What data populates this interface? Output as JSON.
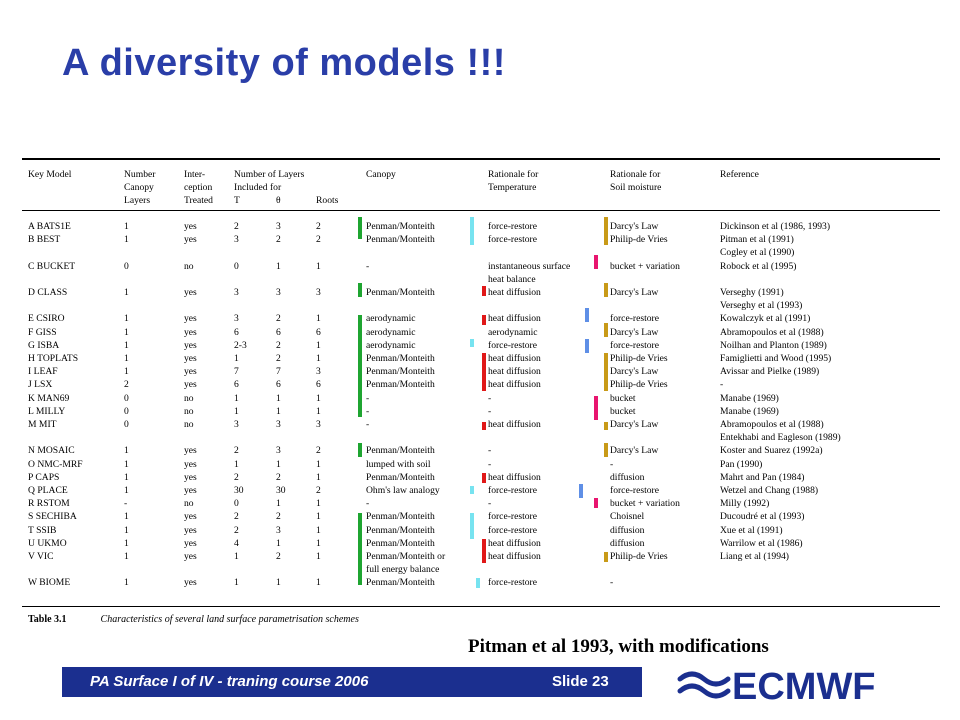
{
  "title": "A diversity of models !!!",
  "source_note": "Pitman et al 1993, with modifications",
  "footer": {
    "course": "PA Surface I of IV - traning course 2006",
    "slide": "Slide 23",
    "logo_text": "ECMWF"
  },
  "colors": {
    "title": "#2a3ea8",
    "footer_band": "#1b2f8f",
    "green": "#1fa531",
    "cyan": "#77e3f0",
    "gold": "#c89a18",
    "magenta": "#e8156f",
    "red": "#e01818",
    "blue": "#5f8fe6"
  },
  "table": {
    "headers": {
      "model": [
        "Key Model"
      ],
      "layers": [
        "Number",
        "Canopy",
        "Layers"
      ],
      "intercept": [
        "Inter-",
        "ception",
        "Treated"
      ],
      "nlayers": [
        "Number of Layers",
        "Included for"
      ],
      "T": "T",
      "theta": "θ",
      "roots": "Roots",
      "canopy": [
        "Canopy"
      ],
      "temp": [
        "Rationale for",
        "Temperature"
      ],
      "soil": [
        "Rationale for",
        "Soil moisture"
      ],
      "ref": [
        "Reference"
      ]
    },
    "rows": [
      {
        "model": "A BATS1E",
        "layers": "1",
        "intercept": "yes",
        "T": "2",
        "theta": "3",
        "roots": "2",
        "canopy": "Penman/Monteith",
        "temp": "force-restore",
        "soil": "Darcy's Law",
        "ref": "Dickinson et al (1986, 1993)"
      },
      {
        "model": "B BEST",
        "layers": "1",
        "intercept": "yes",
        "T": "3",
        "theta": "2",
        "roots": "2",
        "canopy": "Penman/Monteith",
        "temp": "force-restore",
        "soil": "Philip-de Vries",
        "ref": "Pitman et al (1991)"
      },
      {
        "model": "",
        "layers": "",
        "intercept": "",
        "T": "",
        "theta": "",
        "roots": "",
        "canopy": "",
        "temp": "",
        "soil": "",
        "ref": "Cogley et al (1990)"
      },
      {
        "model": "C BUCKET",
        "layers": "0",
        "intercept": "no",
        "T": "0",
        "theta": "1",
        "roots": "1",
        "canopy": "-",
        "temp": "instantaneous surface",
        "soil": "bucket + variation",
        "ref": "Robock et al (1995)"
      },
      {
        "model": "",
        "layers": "",
        "intercept": "",
        "T": "",
        "theta": "",
        "roots": "",
        "canopy": "",
        "temp": "heat balance",
        "soil": "",
        "ref": ""
      },
      {
        "model": "D CLASS",
        "layers": "1",
        "intercept": "yes",
        "T": "3",
        "theta": "3",
        "roots": "3",
        "canopy": "Penman/Monteith",
        "temp": "heat diffusion",
        "soil": "Darcy's Law",
        "ref": "Verseghy (1991)"
      },
      {
        "model": "",
        "layers": "",
        "intercept": "",
        "T": "",
        "theta": "",
        "roots": "",
        "canopy": "",
        "temp": "",
        "soil": "",
        "ref": "Verseghy et al (1993)"
      },
      {
        "model": "E CSIRO",
        "layers": "1",
        "intercept": "yes",
        "T": "3",
        "theta": "2",
        "roots": "1",
        "canopy": "aerodynamic",
        "temp": "heat diffusion",
        "soil": "force-restore",
        "ref": "Kowalczyk et al (1991)"
      },
      {
        "model": "F GISS",
        "layers": "1",
        "intercept": "yes",
        "T": "6",
        "theta": "6",
        "roots": "6",
        "canopy": "aerodynamic",
        "temp": "aerodynamic",
        "soil": "Darcy's Law",
        "ref": "Abramopoulos et al (1988)"
      },
      {
        "model": "G ISBA",
        "layers": "1",
        "intercept": "yes",
        "T": "2-3",
        "theta": "2",
        "roots": "1",
        "canopy": "aerodynamic",
        "temp": "force-restore",
        "soil": "force-restore",
        "ref": "Noilhan and Planton (1989)"
      },
      {
        "model": "H TOPLATS",
        "layers": "1",
        "intercept": "yes",
        "T": "1",
        "theta": "2",
        "roots": "1",
        "canopy": "Penman/Monteith",
        "temp": "heat diffusion",
        "soil": "Philip-de Vries",
        "ref": "Famiglietti and Wood (1995)"
      },
      {
        "model": "I LEAF",
        "layers": "1",
        "intercept": "yes",
        "T": "7",
        "theta": "7",
        "roots": "3",
        "canopy": "Penman/Monteith",
        "temp": "heat diffusion",
        "soil": "Darcy's Law",
        "ref": "Avissar and Pielke (1989)"
      },
      {
        "model": "J LSX",
        "layers": "2",
        "intercept": "yes",
        "T": "6",
        "theta": "6",
        "roots": "6",
        "canopy": "Penman/Monteith",
        "temp": "heat diffusion",
        "soil": "Philip-de Vries",
        "ref": "-"
      },
      {
        "model": "K MAN69",
        "layers": "0",
        "intercept": "no",
        "T": "1",
        "theta": "1",
        "roots": "1",
        "canopy": "-",
        "temp": "-",
        "soil": "bucket",
        "ref": "Manabe (1969)"
      },
      {
        "model": "L MILLY",
        "layers": "0",
        "intercept": "no",
        "T": "1",
        "theta": "1",
        "roots": "1",
        "canopy": "-",
        "temp": "-",
        "soil": "bucket",
        "ref": "Manabe (1969)"
      },
      {
        "model": "M MIT",
        "layers": "0",
        "intercept": "no",
        "T": "3",
        "theta": "3",
        "roots": "3",
        "canopy": "-",
        "temp": "heat diffusion",
        "soil": "Darcy's Law",
        "ref": "Abramopoulos et al (1988)"
      },
      {
        "model": "",
        "layers": "",
        "intercept": "",
        "T": "",
        "theta": "",
        "roots": "",
        "canopy": "",
        "temp": "",
        "soil": "",
        "ref": "Entekhabi and Eagleson (1989)"
      },
      {
        "model": "N MOSAIC",
        "layers": "1",
        "intercept": "yes",
        "T": "2",
        "theta": "3",
        "roots": "2",
        "canopy": "Penman/Monteith",
        "temp": "-",
        "soil": "Darcy's Law",
        "ref": "Koster and Suarez (1992a)"
      },
      {
        "model": "O NMC-MRF",
        "layers": "1",
        "intercept": "yes",
        "T": "1",
        "theta": "1",
        "roots": "1",
        "canopy": "lumped with soil",
        "temp": "-",
        "soil": "-",
        "ref": "Pan (1990)"
      },
      {
        "model": "P CAPS",
        "layers": "1",
        "intercept": "yes",
        "T": "2",
        "theta": "2",
        "roots": "1",
        "canopy": "Penman/Monteith",
        "temp": "heat diffusion",
        "soil": "diffusion",
        "ref": "Mahrt and Pan (1984)"
      },
      {
        "model": "Q PLACE",
        "layers": "1",
        "intercept": "yes",
        "T": "30",
        "theta": "30",
        "roots": "2",
        "canopy": "Ohm's law analogy",
        "temp": "force-restore",
        "soil": "force-restore",
        "ref": "Wetzel and Chang (1988)"
      },
      {
        "model": "R RSTOM",
        "layers": "-",
        "intercept": "no",
        "T": "0",
        "theta": "1",
        "roots": "1",
        "canopy": "-",
        "temp": "-",
        "soil": "bucket + variation",
        "ref": "Milly (1992)"
      },
      {
        "model": "S SECHIBA",
        "layers": "1",
        "intercept": "yes",
        "T": "2",
        "theta": "2",
        "roots": "1",
        "canopy": "Penman/Monteith",
        "temp": "force-restore",
        "soil": "Choisnel",
        "ref": "Ducoudré et al (1993)"
      },
      {
        "model": "T SSIB",
        "layers": "1",
        "intercept": "yes",
        "T": "2",
        "theta": "3",
        "roots": "1",
        "canopy": "Penman/Monteith",
        "temp": "force-restore",
        "soil": "diffusion",
        "ref": "Xue et al (1991)"
      },
      {
        "model": "U UKMO",
        "layers": "1",
        "intercept": "yes",
        "T": "4",
        "theta": "1",
        "roots": "1",
        "canopy": "Penman/Monteith",
        "temp": "heat diffusion",
        "soil": "diffusion",
        "ref": "Warrilow et al (1986)"
      },
      {
        "model": "V VIC",
        "layers": "1",
        "intercept": "yes",
        "T": "1",
        "theta": "2",
        "roots": "1",
        "canopy": "Penman/Monteith or",
        "temp": "heat diffusion",
        "soil": "Philip-de Vries",
        "ref": "Liang et al (1994)"
      },
      {
        "model": "",
        "layers": "",
        "intercept": "",
        "T": "",
        "theta": "",
        "roots": "",
        "canopy": "full energy balance",
        "temp": "",
        "soil": "",
        "ref": ""
      },
      {
        "model": "W BIOME",
        "layers": "1",
        "intercept": "yes",
        "T": "1",
        "theta": "1",
        "roots": "1",
        "canopy": "Penman/Monteith",
        "temp": "force-restore",
        "soil": "-",
        "ref": ""
      }
    ],
    "caption_label": "Table 3.1",
    "caption_text": "Characteristics of several land surface parametrisation schemes"
  }
}
